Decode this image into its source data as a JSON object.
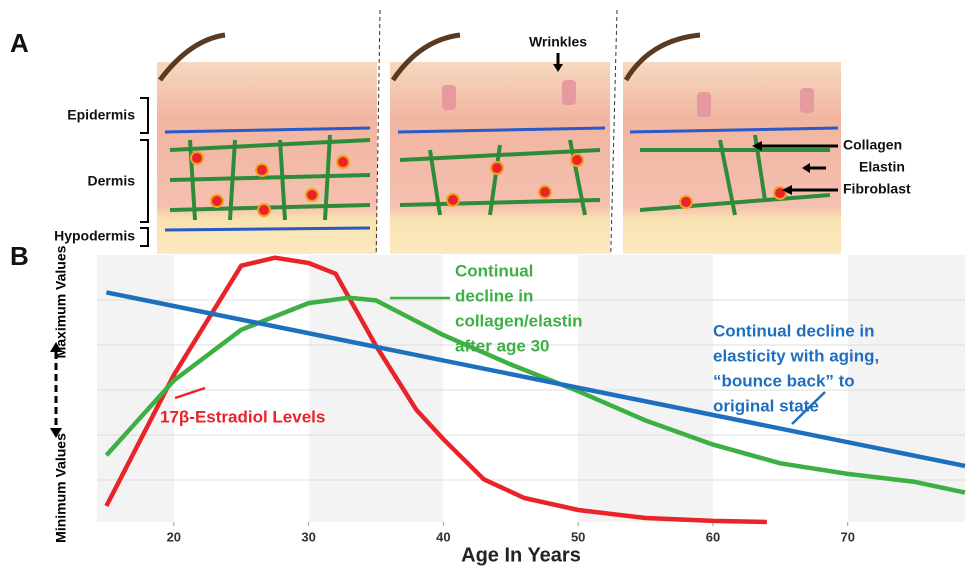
{
  "panel_a": {
    "label": "A",
    "layers": [
      "Epidermis",
      "Dermis",
      "Hypodermis"
    ],
    "callouts": [
      "Wrinkles",
      "Collagen",
      "Elastin",
      "Fibroblast"
    ]
  },
  "chart_data": {
    "type": "line",
    "panel_label": "B",
    "xlabel": "Age In Years",
    "ylabel_top": "Maximum Values",
    "ylabel_bottom": "Minimum Values",
    "xlim": [
      14.3,
      78.7
    ],
    "xticks": [
      20,
      30,
      40,
      50,
      60,
      70
    ],
    "ylim": [
      0,
      100
    ],
    "grid": true,
    "series": [
      {
        "name": "17β-Estradiol Levels",
        "color": "#e8242a",
        "x": [
          15,
          20,
          25,
          27.5,
          30,
          32,
          35,
          38,
          40,
          43,
          46,
          50,
          55,
          60,
          64
        ],
        "values": [
          6,
          55,
          96,
          99,
          97,
          93,
          66,
          42,
          31,
          16,
          9,
          4.5,
          1.5,
          0.4,
          0
        ]
      },
      {
        "name": "Continual decline in collagen/elastin after age 30",
        "color": "#3cb043",
        "x": [
          15,
          20,
          25,
          30,
          33,
          35,
          40,
          45,
          50,
          55,
          60,
          65,
          70,
          75,
          78.7
        ],
        "values": [
          25,
          53,
          72,
          82,
          84,
          83,
          70,
          59,
          49,
          38,
          29,
          22,
          18,
          15,
          11
        ]
      },
      {
        "name": "Continual decline in elasticity with aging, “bounce back” to original state",
        "color": "#1f6fbf",
        "x": [
          15,
          78.7
        ],
        "values": [
          86,
          21
        ]
      }
    ],
    "annotations": [
      [
        "17β-Estradiol Levels"
      ],
      [
        "Continual",
        "decline in",
        "collagen/elastin",
        "after age 30"
      ],
      [
        "Continual decline in",
        "elasticity with aging,",
        "“bounce back” to",
        "original state"
      ]
    ]
  }
}
